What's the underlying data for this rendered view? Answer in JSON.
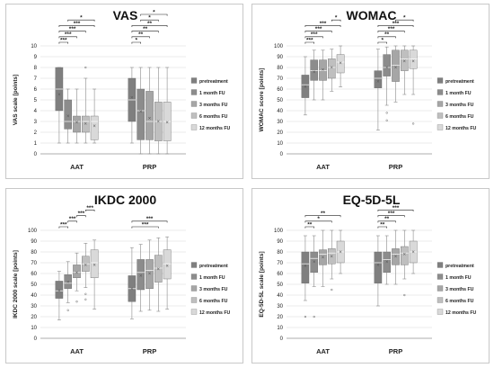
{
  "colors": [
    "#7f7f7f",
    "#8c8c8c",
    "#a6a6a6",
    "#bfbfbf",
    "#d9d9d9"
  ],
  "chart_data": [
    {
      "type": "boxplot",
      "title": "VAS",
      "ylabel": "VAS scale [points]",
      "ylim": [
        0,
        10
      ],
      "yticks": [
        0,
        1,
        2,
        3,
        4,
        5,
        6,
        7,
        8,
        9,
        10
      ],
      "categories": [
        "AAT",
        "PRP"
      ],
      "legend": [
        "pretreatment",
        "1 month FU",
        "3 months FU",
        "6 months FU",
        "12 months FU"
      ],
      "boxes": [
        [
          {
            "min": 1,
            "q1": 4,
            "median": 6,
            "q3": 8,
            "max": 8,
            "mean": 5.5
          },
          {
            "min": 1,
            "q1": 2.3,
            "median": 3,
            "q3": 5,
            "max": 6,
            "mean": 3.5
          },
          {
            "min": 1,
            "q1": 2,
            "median": 3,
            "q3": 3.5,
            "max": 6,
            "mean": 2.9
          },
          {
            "min": 1,
            "q1": 2,
            "median": 3,
            "q3": 3.5,
            "max": 7,
            "mean": 2.8,
            "outliers": [
              8
            ]
          },
          {
            "min": 1,
            "q1": 1.3,
            "median": 3,
            "q3": 3.5,
            "max": 6,
            "mean": 2.6
          }
        ],
        [
          {
            "min": 1,
            "q1": 3,
            "median": 5,
            "q3": 7,
            "max": 8,
            "mean": 5.2
          },
          {
            "min": 0,
            "q1": 1.3,
            "median": 4,
            "q3": 6,
            "max": 8,
            "mean": 3.9
          },
          {
            "min": 0,
            "q1": 1.3,
            "median": 3,
            "q3": 5.8,
            "max": 8,
            "mean": 3.3
          },
          {
            "min": 0,
            "q1": 1.2,
            "median": 3,
            "q3": 4.8,
            "max": 8,
            "mean": 3.0
          },
          {
            "min": 0,
            "q1": 1.2,
            "median": 3,
            "q3": 4.8,
            "max": 8,
            "mean": 2.9
          }
        ]
      ],
      "significance": [
        [
          {
            "from": 0,
            "to": 1,
            "label": "***"
          },
          {
            "from": 0,
            "to": 2,
            "label": "***"
          },
          {
            "from": 0,
            "to": 3,
            "label": "***"
          },
          {
            "from": 0,
            "to": 4,
            "label": "***"
          },
          {
            "from": 1,
            "to": 4,
            "label": "*"
          }
        ],
        [
          {
            "from": 0,
            "to": 1,
            "label": "*"
          },
          {
            "from": 0,
            "to": 2,
            "label": "**"
          },
          {
            "from": 0,
            "to": 3,
            "label": "**"
          },
          {
            "from": 0,
            "to": 4,
            "label": "**"
          },
          {
            "from": 1,
            "to": 3,
            "label": "*"
          },
          {
            "from": 1,
            "to": 4,
            "label": "*"
          }
        ]
      ]
    },
    {
      "type": "boxplot",
      "title": "WOMAC",
      "ylabel": "WOMAC score [points]",
      "ylim": [
        0,
        100
      ],
      "yticks": [
        0,
        10,
        20,
        30,
        40,
        50,
        60,
        70,
        80,
        90,
        100
      ],
      "categories": [
        "AAT",
        "PRP"
      ],
      "legend": [
        "pretreatment",
        "1 month FU",
        "3 months FU",
        "6 months FU",
        "12 months FU"
      ],
      "boxes": [
        [
          {
            "min": 36,
            "q1": 52,
            "median": 64,
            "q3": 73,
            "max": 90,
            "mean": 62
          },
          {
            "min": 50,
            "q1": 68,
            "median": 77,
            "q3": 87,
            "max": 96,
            "mean": 76
          },
          {
            "min": 50,
            "q1": 68,
            "median": 77,
            "q3": 87,
            "max": 96,
            "mean": 78
          },
          {
            "min": 58,
            "q1": 70,
            "median": 80,
            "q3": 88,
            "max": 97,
            "mean": 80
          },
          {
            "min": 62,
            "q1": 75,
            "median": 85,
            "q3": 92,
            "max": 100,
            "mean": 84
          }
        ],
        [
          {
            "min": 22,
            "q1": 61,
            "median": 70,
            "q3": 77,
            "max": 97,
            "mean": 67
          },
          {
            "min": 45,
            "q1": 72,
            "median": 80,
            "q3": 92,
            "max": 99,
            "mean": 80,
            "outliers": [
              38,
              31
            ]
          },
          {
            "min": 48,
            "q1": 67,
            "median": 82,
            "q3": 96,
            "max": 100,
            "mean": 80
          },
          {
            "min": 55,
            "q1": 77,
            "median": 88,
            "q3": 96,
            "max": 100,
            "mean": 86
          },
          {
            "min": 55,
            "q1": 79,
            "median": 88,
            "q3": 96,
            "max": 100,
            "mean": 86,
            "outliers": [
              28
            ]
          }
        ]
      ],
      "significance": [
        [
          {
            "from": 0,
            "to": 1,
            "label": "***"
          },
          {
            "from": 0,
            "to": 2,
            "label": "***"
          },
          {
            "from": 0,
            "to": 3,
            "label": "***"
          },
          {
            "from": 0,
            "to": 4,
            "label": "***"
          },
          {
            "from": 3,
            "to": 4,
            "label": "*"
          }
        ],
        [
          {
            "from": 0,
            "to": 1,
            "label": "*"
          },
          {
            "from": 0,
            "to": 2,
            "label": "**"
          },
          {
            "from": 0,
            "to": 3,
            "label": "***"
          },
          {
            "from": 0,
            "to": 4,
            "label": "***"
          },
          {
            "from": 2,
            "to": 4,
            "label": "*"
          }
        ]
      ]
    },
    {
      "type": "boxplot",
      "title": "IKDC 2000",
      "ylabel": "IKDC 2000 scale [points]",
      "ylim": [
        0,
        100
      ],
      "yticks": [
        0,
        10,
        20,
        30,
        40,
        50,
        60,
        70,
        80,
        90,
        100
      ],
      "categories": [
        "AAT",
        "PRP"
      ],
      "legend": [
        "pretreatment",
        "1 month FU",
        "3 months FU",
        "6 months FU",
        "12 months FU"
      ],
      "boxes": [
        [
          {
            "min": 17,
            "q1": 37,
            "median": 44,
            "q3": 53,
            "max": 62,
            "mean": 44
          },
          {
            "min": 33,
            "q1": 46,
            "median": 51,
            "q3": 59,
            "max": 71,
            "mean": 52,
            "outliers": [
              26
            ]
          },
          {
            "min": 44,
            "q1": 56,
            "median": 61,
            "q3": 68,
            "max": 79,
            "mean": 61,
            "outliers": [
              34
            ]
          },
          {
            "min": 47,
            "q1": 62,
            "median": 69,
            "q3": 76,
            "max": 88,
            "mean": 68,
            "outliers": [
              41,
              36
            ]
          },
          {
            "min": 27,
            "q1": 56,
            "median": 70,
            "q3": 82,
            "max": 91,
            "mean": 68
          }
        ],
        [
          {
            "min": 18,
            "q1": 34,
            "median": 46,
            "q3": 58,
            "max": 84,
            "mean": 46
          },
          {
            "min": 25,
            "q1": 45,
            "median": 61,
            "q3": 73,
            "max": 87,
            "mean": 58
          },
          {
            "min": 26,
            "q1": 46,
            "median": 63,
            "q3": 73,
            "max": 91,
            "mean": 60
          },
          {
            "min": 25,
            "q1": 52,
            "median": 65,
            "q3": 77,
            "max": 93,
            "mean": 64
          },
          {
            "min": 27,
            "q1": 55,
            "median": 69,
            "q3": 82,
            "max": 94,
            "mean": 67
          }
        ]
      ],
      "significance": [
        [
          {
            "from": 0,
            "to": 1,
            "label": "***"
          },
          {
            "from": 1,
            "to": 2,
            "label": "***"
          },
          {
            "from": 2,
            "to": 3,
            "label": "***"
          },
          {
            "from": 3,
            "to": 4,
            "label": "***"
          }
        ],
        [
          {
            "from": 0,
            "to": 3,
            "label": "***"
          },
          {
            "from": 0,
            "to": 4,
            "label": "***"
          }
        ]
      ]
    },
    {
      "type": "boxplot",
      "title": "EQ-5D-5L",
      "ylabel": "EQ-5D-5L scale [points]",
      "ylim": [
        0,
        100
      ],
      "yticks": [
        0,
        10,
        20,
        30,
        40,
        50,
        60,
        70,
        80,
        90,
        100
      ],
      "categories": [
        "AAT",
        "PRP"
      ],
      "legend": [
        "pretreatment",
        "1 month FU",
        "3 months FU",
        "6 months FU",
        "12 months FU"
      ],
      "boxes": [
        [
          {
            "min": 35,
            "q1": 51,
            "median": 69,
            "q3": 80,
            "max": 95,
            "mean": 67,
            "outliers": [
              20
            ]
          },
          {
            "min": 48,
            "q1": 61,
            "median": 74,
            "q3": 80,
            "max": 95,
            "mean": 71,
            "outliers": [
              20
            ]
          },
          {
            "min": 48,
            "q1": 68,
            "median": 78,
            "q3": 82,
            "max": 100,
            "mean": 75
          },
          {
            "min": 55,
            "q1": 69,
            "median": 79,
            "q3": 83,
            "max": 100,
            "mean": 76,
            "outliers": [
              45
            ]
          },
          {
            "min": 60,
            "q1": 70,
            "median": 80,
            "q3": 90,
            "max": 100,
            "mean": 80
          }
        ],
        [
          {
            "min": 30,
            "q1": 51,
            "median": 70,
            "q3": 80,
            "max": 95,
            "mean": 68
          },
          {
            "min": 50,
            "q1": 61,
            "median": 73,
            "q3": 80,
            "max": 95,
            "mean": 71
          },
          {
            "min": 50,
            "q1": 68,
            "median": 78,
            "q3": 83,
            "max": 100,
            "mean": 76
          },
          {
            "min": 55,
            "q1": 68,
            "median": 79,
            "q3": 85,
            "max": 100,
            "mean": 78,
            "outliers": [
              40
            ]
          },
          {
            "min": 60,
            "q1": 70,
            "median": 80,
            "q3": 90,
            "max": 100,
            "mean": 80
          }
        ]
      ],
      "significance": [
        [
          {
            "from": 0,
            "to": 1,
            "label": "**"
          },
          {
            "from": 0,
            "to": 3,
            "label": "*"
          },
          {
            "from": 0,
            "to": 4,
            "label": "**"
          }
        ],
        [
          {
            "from": 0,
            "to": 1,
            "label": "**"
          },
          {
            "from": 0,
            "to": 2,
            "label": "**"
          },
          {
            "from": 0,
            "to": 3,
            "label": "***"
          },
          {
            "from": 0,
            "to": 4,
            "label": "***"
          }
        ]
      ]
    }
  ]
}
